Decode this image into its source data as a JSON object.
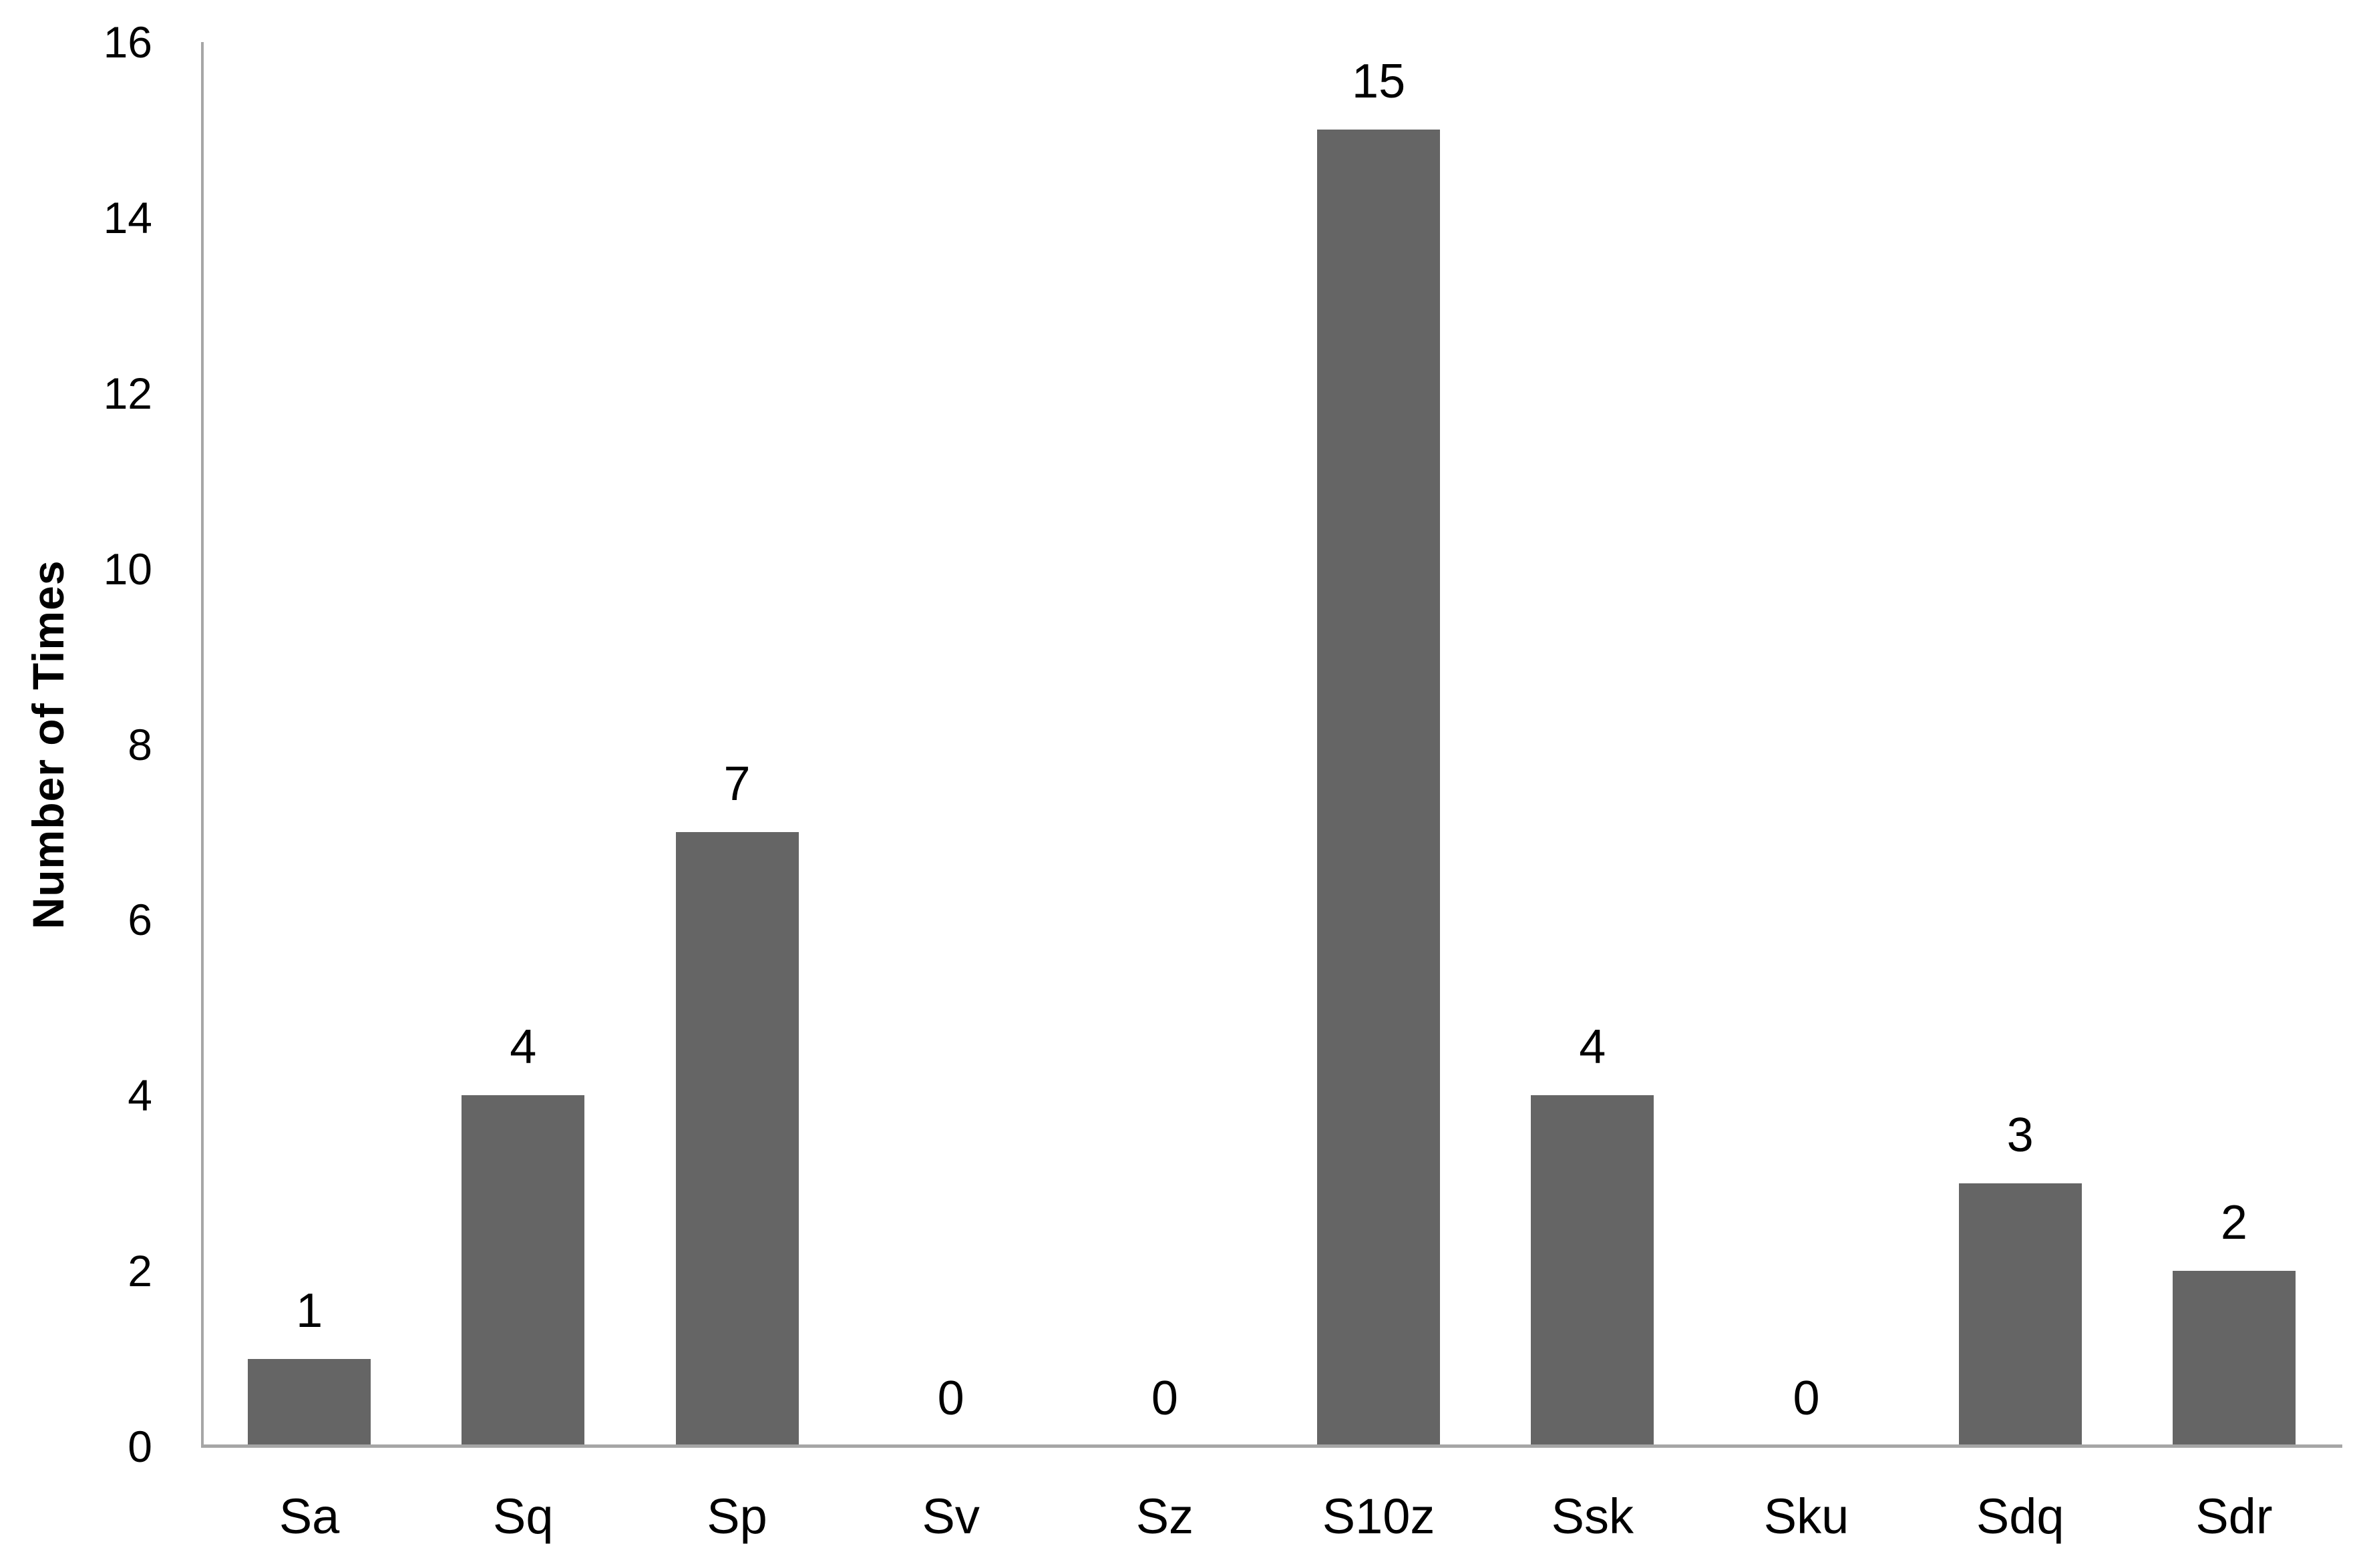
{
  "chart_data": {
    "type": "bar",
    "title": "",
    "xlabel": "",
    "ylabel": "Number of Times",
    "categories": [
      "Sa",
      "Sq",
      "Sp",
      "Sv",
      "Sz",
      "S10z",
      "Ssk",
      "Sku",
      "Sdq",
      "Sdr"
    ],
    "values": [
      1,
      4,
      7,
      0,
      0,
      15,
      4,
      0,
      3,
      2
    ],
    "data_labels": [
      "1",
      "4",
      "7",
      "0",
      "0",
      "15",
      "4",
      "0",
      "3",
      "2"
    ],
    "ylim": [
      0,
      16
    ],
    "ytick_step": 2,
    "yticks_top_to_bottom": [
      "16",
      "14",
      "12",
      "10",
      "8",
      "6",
      "4",
      "2",
      "0"
    ],
    "grid": false,
    "legend_position": "none",
    "colors": {
      "bar_fill": "#656565",
      "axis_line": "#a6a6a6",
      "text": "#000000",
      "background": "#ffffff"
    }
  }
}
